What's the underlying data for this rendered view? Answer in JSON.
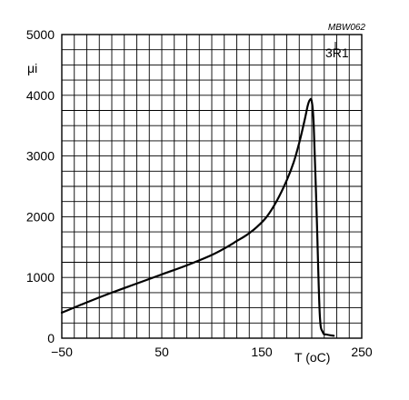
{
  "figure_code": "MBW062",
  "chart_data": {
    "type": "line",
    "title": "",
    "xlabel": "T (oC)",
    "ylabel": "μi",
    "xlim": [
      -50,
      250
    ],
    "ylim": [
      0,
      5000
    ],
    "x_ticks": [
      -50,
      0,
      50,
      100,
      150,
      200,
      250
    ],
    "x_tick_labels": [
      "−50",
      "",
      "50",
      "",
      "150",
      "",
      "250"
    ],
    "y_ticks": [
      0,
      500,
      1000,
      1500,
      2000,
      2500,
      3000,
      3500,
      4000,
      4500,
      5000
    ],
    "y_tick_labels": [
      "0",
      "",
      "1000",
      "",
      "2000",
      "",
      "3000",
      "",
      "4000",
      "",
      "5000"
    ],
    "grid": true,
    "series": [
      {
        "name": "3R1",
        "x": [
          -50,
          -25,
          0,
          25,
          50,
          75,
          100,
          115,
          125,
          135,
          145,
          155,
          165,
          175,
          182,
          188,
          193,
          196,
          198,
          200,
          202,
          205,
          208,
          211,
          215,
          222
        ],
        "y": [
          420,
          590,
          750,
          900,
          1050,
          1200,
          1370,
          1500,
          1600,
          1700,
          1830,
          2000,
          2260,
          2600,
          2900,
          3250,
          3600,
          3830,
          3920,
          3900,
          3500,
          2000,
          400,
          100,
          60,
          40
        ]
      }
    ]
  }
}
